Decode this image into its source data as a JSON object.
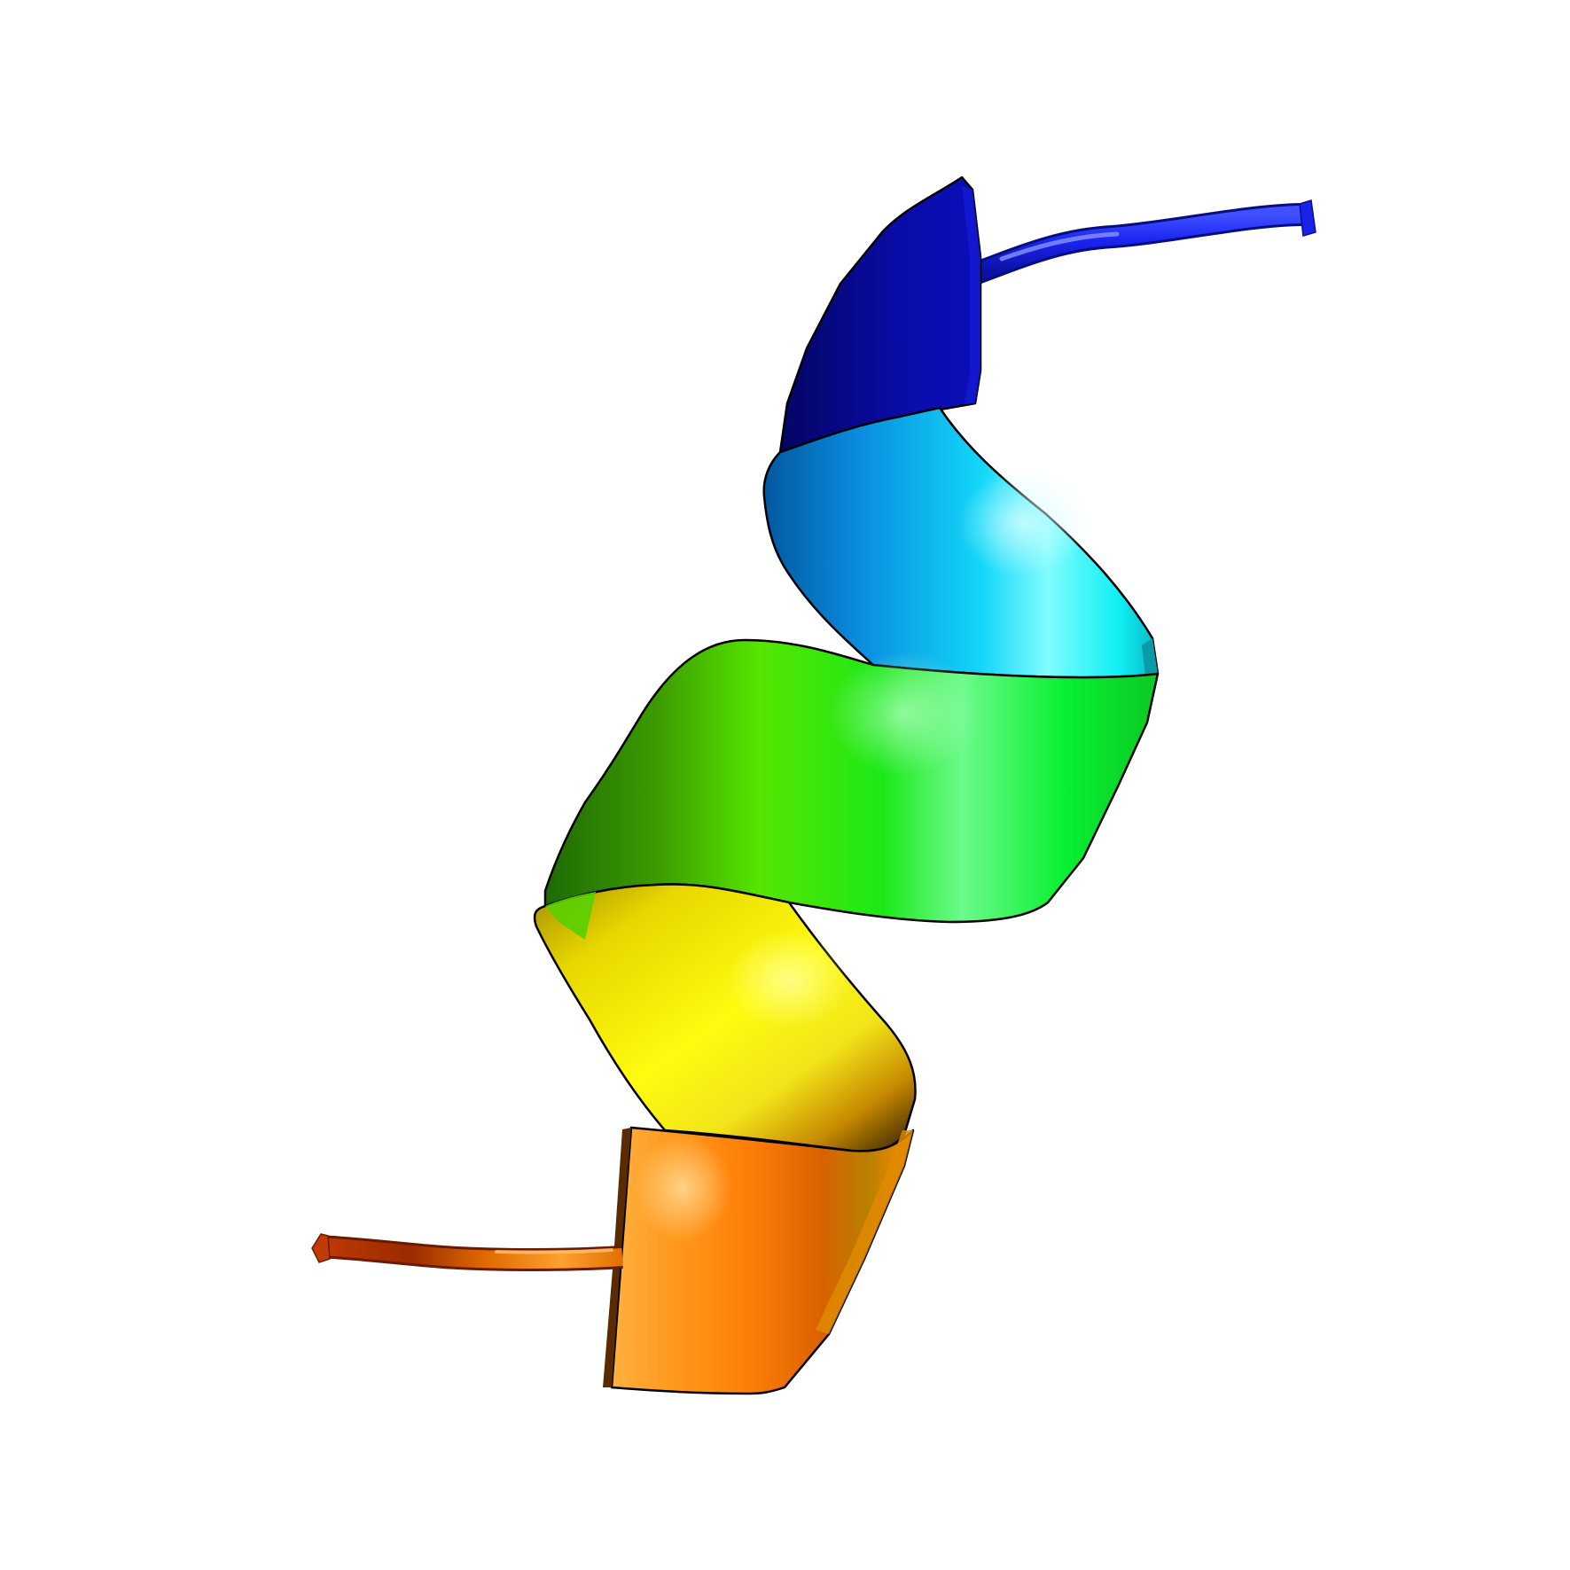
{
  "scene": {
    "background": "#ffffff",
    "subject": "protein-helix-cartoon",
    "segments": [
      {
        "name": "n-terminal-coil",
        "color": "#1020e0"
      },
      {
        "name": "helix-segment-blue",
        "color": "#0a0ca8"
      },
      {
        "name": "helix-segment-azure",
        "color": "#0a8ee0"
      },
      {
        "name": "helix-segment-cyan",
        "color": "#10f4f4"
      },
      {
        "name": "helix-segment-green",
        "color": "#10e830"
      },
      {
        "name": "helix-segment-lime",
        "color": "#4ce800"
      },
      {
        "name": "helix-segment-yellow",
        "color": "#f4ec00"
      },
      {
        "name": "helix-segment-orange",
        "color": "#ff7e08"
      },
      {
        "name": "c-terminal-coil",
        "color": "#c04408"
      }
    ]
  }
}
